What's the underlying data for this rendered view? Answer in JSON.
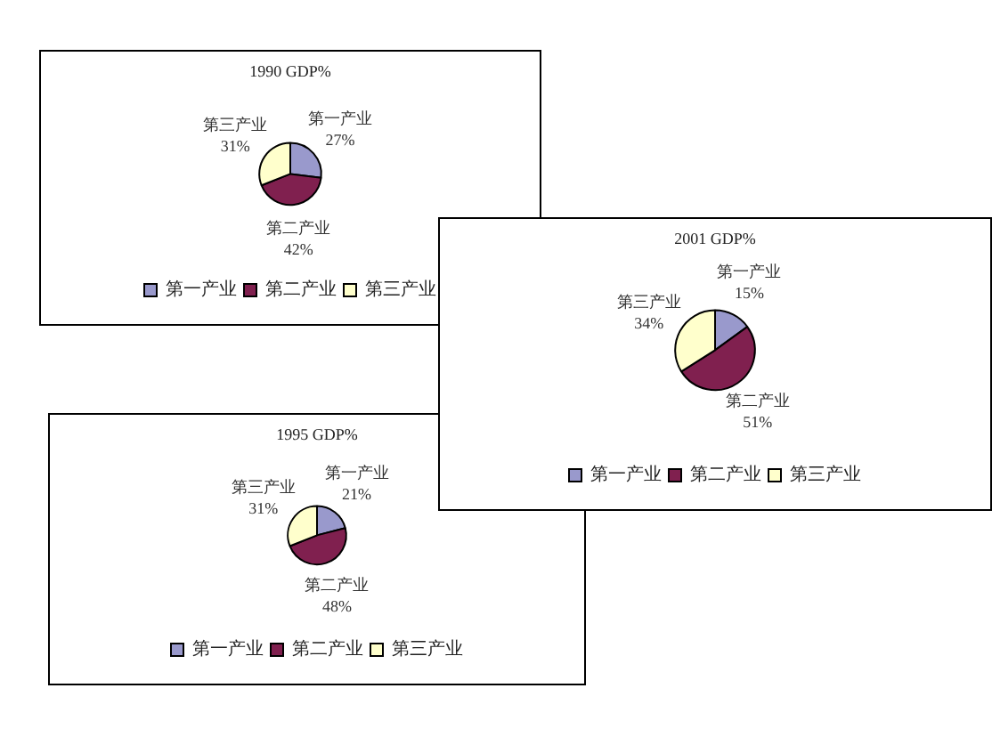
{
  "chart_data": [
    {
      "type": "pie",
      "title": "1990 GDP%",
      "categories": [
        "第一产业",
        "第二产业",
        "第三产业"
      ],
      "values": [
        27,
        42,
        31
      ],
      "value_labels": [
        "27%",
        "42%",
        "31%"
      ],
      "colors": [
        "#9999cc",
        "#80204f",
        "#ffffcc"
      ],
      "legend": "bottom"
    },
    {
      "type": "pie",
      "title": "2001 GDP%",
      "categories": [
        "第一产业",
        "第二产业",
        "第三产业"
      ],
      "values": [
        15,
        51,
        34
      ],
      "value_labels": [
        "15%",
        "51%",
        "34%"
      ],
      "colors": [
        "#9999cc",
        "#80204f",
        "#ffffcc"
      ],
      "legend": "bottom"
    },
    {
      "type": "pie",
      "title": "1995 GDP%",
      "categories": [
        "第一产业",
        "第二产业",
        "第三产业"
      ],
      "values": [
        21,
        48,
        31
      ],
      "value_labels": [
        "21%",
        "48%",
        "31%"
      ],
      "colors": [
        "#9999cc",
        "#80204f",
        "#ffffcc"
      ],
      "legend": "bottom"
    }
  ]
}
